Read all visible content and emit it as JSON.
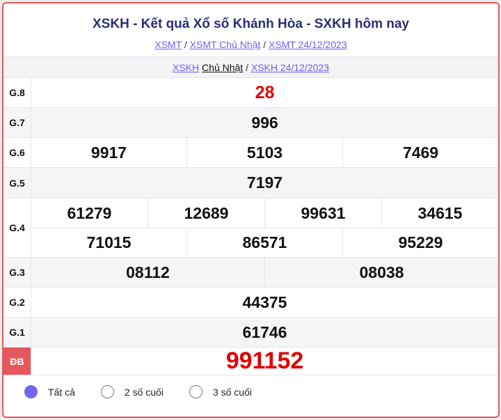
{
  "header": {
    "title": "XSKH - Kết quả Xổ số Khánh Hòa - SXKH hôm nay",
    "breadcrumbs": [
      "XSMT",
      "XSMT Chủ Nhật",
      "XSMT 24/12/2023"
    ],
    "separator": "/"
  },
  "subnav": {
    "link1": "XSKH",
    "link1_day": "Chủ Nhật",
    "link2": "XSKH 24/12/2023"
  },
  "prizes": {
    "g8": {
      "label": "G.8",
      "numbers": [
        "28"
      ]
    },
    "g7": {
      "label": "G.7",
      "numbers": [
        "996"
      ]
    },
    "g6": {
      "label": "G.6",
      "numbers": [
        "9917",
        "5103",
        "7469"
      ]
    },
    "g5": {
      "label": "G.5",
      "numbers": [
        "7197"
      ]
    },
    "g4": {
      "label": "G.4",
      "numbers": [
        "61279",
        "12689",
        "99631",
        "34615",
        "71015",
        "86571",
        "95229"
      ]
    },
    "g3": {
      "label": "G.3",
      "numbers": [
        "08112",
        "08038"
      ]
    },
    "g2": {
      "label": "G.2",
      "numbers": [
        "44375"
      ]
    },
    "g1": {
      "label": "G.1",
      "numbers": [
        "61746"
      ]
    },
    "db": {
      "label": "ĐB",
      "numbers": [
        "991152"
      ]
    }
  },
  "filter": {
    "options": [
      "Tất cả",
      "2 số cuối",
      "3 số cuối"
    ],
    "selected": "Tất cả"
  },
  "colors": {
    "accent": "#e5575c",
    "title": "#2c2e7a",
    "link": "#6a5ff0",
    "highlight": "#e00000"
  }
}
